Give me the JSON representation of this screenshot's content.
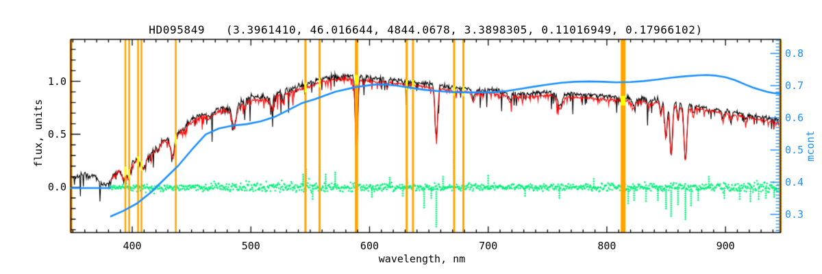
{
  "title": "HD095849   (3.3961410, 46.016644, 4844.0678, 3.3898305, 0.11016949, 0.17966102)",
  "colors": {
    "background": "#ffffff",
    "frame": "#000000",
    "observed": "#000000",
    "fitted": "#ff0000",
    "residual": "#00ef77",
    "mcont": "#1e90ff",
    "marker_lines": "#ffa500",
    "marker_overlap": "#ffff00",
    "text": "#000000"
  },
  "axes": {
    "x": {
      "label": "wavelength, nm",
      "range": [
        348.3,
        946.4
      ],
      "major_ticks": [
        400,
        500,
        600,
        700,
        800,
        900
      ],
      "tick_labels": [
        "400",
        "500",
        "600",
        "700",
        "800",
        "900"
      ],
      "minor_step": 10
    },
    "y_left": {
      "label": "flux, units",
      "range": [
        -0.426,
        1.394
      ],
      "major_ticks": [
        0.0,
        0.5,
        1.0
      ],
      "tick_labels": [
        "0.0",
        "0.5",
        "1.0"
      ],
      "minor_step": 0.1
    },
    "y_right": {
      "label": "mcont",
      "range": [
        0.2436,
        0.8436
      ],
      "major_ticks": [
        0.3,
        0.4,
        0.5,
        0.6,
        0.7,
        0.8
      ],
      "tick_labels": [
        "0.3",
        "0.4",
        "0.5",
        "0.6",
        "0.7",
        "0.8"
      ],
      "minor_step": 0.01
    }
  },
  "chart_data": {
    "type": "line",
    "title": "HD095849   (3.3961410, 46.016644, 4844.0678, 3.3898305, 0.11016949, 0.17966102)",
    "xlabel": "wavelength, nm",
    "ylabel_left": "flux, units",
    "ylabel_right": "mcont",
    "x_range": [
      348.3,
      946.4
    ],
    "y_left_range": [
      -0.426,
      1.394
    ],
    "y_right_range": [
      0.2436,
      0.8436
    ],
    "grid": false,
    "legend": null,
    "series": [
      {
        "name": "observed spectrum",
        "color": "#000000",
        "axis": "left",
        "style": "noisy-line"
      },
      {
        "name": "fitted spectrum",
        "color": "#ff0000",
        "axis": "left",
        "style": "noisy-line",
        "start_x": 381.5,
        "scale": 0.972,
        "offset": -0.005
      },
      {
        "name": "residual",
        "color": "#00ef77",
        "axis": "left",
        "style": "plus-markers",
        "start_x": 381.5,
        "mean": 0.0
      },
      {
        "name": "mcont",
        "color": "#1e90ff",
        "axis": "right",
        "style": "smooth-line"
      }
    ],
    "observed_continuum": [
      [
        348,
        0.1
      ],
      [
        352,
        0.085
      ],
      [
        356,
        0.11
      ],
      [
        360,
        0.14
      ],
      [
        364,
        0.1
      ],
      [
        368,
        0.11
      ],
      [
        371,
        0.07
      ],
      [
        374,
        0.04
      ],
      [
        377,
        0.02
      ],
      [
        380,
        0.05
      ],
      [
        383,
        0.1
      ],
      [
        386,
        0.13
      ],
      [
        389,
        0.16
      ],
      [
        392,
        0.11
      ],
      [
        394.5,
        0.17
      ],
      [
        397,
        0.12
      ],
      [
        399,
        0.2
      ],
      [
        402,
        0.28
      ],
      [
        405,
        0.26
      ],
      [
        408,
        0.21
      ],
      [
        411,
        0.28
      ],
      [
        414,
        0.31
      ],
      [
        417,
        0.33
      ],
      [
        421,
        0.38
      ],
      [
        425,
        0.44
      ],
      [
        428,
        0.45
      ],
      [
        431,
        0.44
      ],
      [
        434,
        0.4
      ],
      [
        437,
        0.48
      ],
      [
        440,
        0.53
      ],
      [
        444,
        0.58
      ],
      [
        448,
        0.62
      ],
      [
        452,
        0.65
      ],
      [
        456,
        0.68
      ],
      [
        460,
        0.69
      ],
      [
        464,
        0.67
      ],
      [
        468,
        0.7
      ],
      [
        472,
        0.73
      ],
      [
        476,
        0.76
      ],
      [
        480,
        0.74
      ],
      [
        484,
        0.72
      ],
      [
        488,
        0.76
      ],
      [
        492,
        0.81
      ],
      [
        496,
        0.83
      ],
      [
        500,
        0.85
      ],
      [
        504,
        0.86
      ],
      [
        508,
        0.85
      ],
      [
        512,
        0.86
      ],
      [
        516,
        0.84
      ],
      [
        520,
        0.88
      ],
      [
        524,
        0.9
      ],
      [
        528,
        0.92
      ],
      [
        532,
        0.92
      ],
      [
        536,
        0.94
      ],
      [
        540,
        0.95
      ],
      [
        545,
        0.97
      ],
      [
        550,
        0.99
      ],
      [
        555,
        1.01
      ],
      [
        560,
        1.03
      ],
      [
        565,
        1.04
      ],
      [
        570,
        1.05
      ],
      [
        575,
        1.05
      ],
      [
        580,
        1.06
      ],
      [
        585,
        1.05
      ],
      [
        590,
        1.05
      ],
      [
        595,
        1.04
      ],
      [
        600,
        1.04
      ],
      [
        606,
        1.03
      ],
      [
        612,
        1.03
      ],
      [
        618,
        1.02
      ],
      [
        624,
        1.01
      ],
      [
        630,
        1.0
      ],
      [
        636,
        1.0
      ],
      [
        642,
        0.99
      ],
      [
        648,
        0.98
      ],
      [
        654,
        0.97
      ],
      [
        660,
        0.96
      ],
      [
        666,
        0.95
      ],
      [
        672,
        0.94
      ],
      [
        678,
        0.94
      ],
      [
        684,
        0.93
      ],
      [
        690,
        0.93
      ],
      [
        696,
        0.92
      ],
      [
        702,
        0.92
      ],
      [
        708,
        0.91
      ],
      [
        714,
        0.9
      ],
      [
        720,
        0.89
      ],
      [
        726,
        0.885
      ],
      [
        732,
        0.885
      ],
      [
        738,
        0.89
      ],
      [
        744,
        0.895
      ],
      [
        750,
        0.9
      ],
      [
        756,
        0.885
      ],
      [
        762,
        0.875
      ],
      [
        768,
        0.88
      ],
      [
        774,
        0.88
      ],
      [
        780,
        0.875
      ],
      [
        786,
        0.87
      ],
      [
        792,
        0.865
      ],
      [
        798,
        0.86
      ],
      [
        804,
        0.855
      ],
      [
        810,
        0.85
      ],
      [
        816,
        0.845
      ],
      [
        822,
        0.845
      ],
      [
        828,
        0.84
      ],
      [
        834,
        0.835
      ],
      [
        840,
        0.83
      ],
      [
        846,
        0.82
      ],
      [
        852,
        0.81
      ],
      [
        858,
        0.8
      ],
      [
        864,
        0.79
      ],
      [
        870,
        0.78
      ],
      [
        876,
        0.77
      ],
      [
        882,
        0.755
      ],
      [
        888,
        0.745
      ],
      [
        894,
        0.735
      ],
      [
        900,
        0.725
      ],
      [
        906,
        0.71
      ],
      [
        912,
        0.7
      ],
      [
        918,
        0.69
      ],
      [
        924,
        0.675
      ],
      [
        930,
        0.66
      ],
      [
        936,
        0.65
      ],
      [
        941,
        0.64
      ],
      [
        946,
        0.63
      ]
    ],
    "absorption_lines": [
      [
        393.4,
        0.45,
        1.2
      ],
      [
        396.9,
        0.4,
        1.2
      ],
      [
        402.2,
        0.12,
        0.8
      ],
      [
        410.2,
        0.28,
        1.4
      ],
      [
        422,
        0.1,
        0.8
      ],
      [
        434.0,
        0.28,
        1.4
      ],
      [
        444,
        0.08,
        0.7
      ],
      [
        486.1,
        0.22,
        1.4
      ],
      [
        495,
        0.08,
        0.7
      ],
      [
        517.5,
        0.13,
        1.1
      ],
      [
        527,
        0.1,
        0.8
      ],
      [
        589.0,
        0.72,
        1.0
      ],
      [
        615,
        0.05,
        0.8
      ],
      [
        656.3,
        0.5,
        1.1
      ],
      [
        687.5,
        0.09,
        1.4
      ],
      [
        718.5,
        0.07,
        1.4
      ],
      [
        760.5,
        0.12,
        1.8
      ],
      [
        822.5,
        0.08,
        1.6
      ],
      [
        835,
        0.06,
        1.0
      ],
      [
        845.5,
        0.14,
        0.8
      ],
      [
        849.8,
        0.42,
        1.0
      ],
      [
        854.2,
        0.62,
        1.1
      ],
      [
        860,
        0.18,
        0.8
      ],
      [
        866.2,
        0.66,
        1.2
      ],
      [
        873,
        0.12,
        0.8
      ],
      [
        898,
        0.1,
        1.0
      ],
      [
        905,
        0.08,
        0.8
      ],
      [
        917,
        0.08,
        0.8
      ]
    ],
    "noise_amplitude_segments": [
      [
        348,
        1.0
      ],
      [
        420,
        1.1
      ],
      [
        500,
        1.4
      ],
      [
        600,
        1.2
      ],
      [
        700,
        0.9
      ],
      [
        800,
        1.0
      ],
      [
        870,
        1.1
      ],
      [
        946,
        1.2
      ]
    ],
    "residual_sigma_segments": [
      [
        381,
        0.022
      ],
      [
        400,
        0.028
      ],
      [
        430,
        0.03
      ],
      [
        470,
        0.032
      ],
      [
        500,
        0.04
      ],
      [
        540,
        0.047
      ],
      [
        560,
        0.04
      ],
      [
        600,
        0.038
      ],
      [
        640,
        0.034
      ],
      [
        680,
        0.028
      ],
      [
        720,
        0.026
      ],
      [
        770,
        0.028
      ],
      [
        810,
        0.032
      ],
      [
        850,
        0.035
      ],
      [
        890,
        0.04
      ],
      [
        920,
        0.046
      ],
      [
        946,
        0.048
      ]
    ],
    "residual_spikes": [
      [
        544,
        0.12
      ],
      [
        546.5,
        0.17
      ],
      [
        552,
        -0.11
      ],
      [
        557.9,
        0.21
      ],
      [
        563,
        0.12
      ],
      [
        571,
        0.14
      ],
      [
        589,
        -0.13
      ],
      [
        602,
        -0.09
      ],
      [
        617,
        0.09
      ],
      [
        628,
        -0.08
      ],
      [
        646,
        -0.19
      ],
      [
        652,
        -0.1
      ],
      [
        656.3,
        -0.37
      ],
      [
        662,
        0.1
      ],
      [
        671.3,
        0.34
      ],
      [
        679,
        0.1
      ],
      [
        700,
        0.11
      ],
      [
        731,
        -0.08
      ],
      [
        760,
        -0.1
      ],
      [
        789,
        0.08
      ],
      [
        813.7,
        -0.19
      ],
      [
        818,
        -0.15
      ],
      [
        823,
        -0.12
      ],
      [
        833,
        -0.13
      ],
      [
        843,
        -0.12
      ],
      [
        849.8,
        -0.2
      ],
      [
        854.2,
        -0.27
      ],
      [
        860,
        -0.16
      ],
      [
        866.2,
        -0.3
      ],
      [
        871,
        -0.17
      ],
      [
        877,
        -0.12
      ],
      [
        886,
        0.1
      ],
      [
        899,
        -0.1
      ],
      [
        912,
        -0.11
      ],
      [
        921,
        -0.13
      ],
      [
        928,
        -0.11
      ],
      [
        934,
        -0.1
      ],
      [
        941,
        -0.09
      ]
    ],
    "mcont_flat_segment": [
      [
        348.3,
        0.382
      ],
      [
        381.3,
        0.382
      ]
    ],
    "mcont_curve": [
      [
        382,
        0.294
      ],
      [
        392.5,
        0.311
      ],
      [
        404,
        0.334
      ],
      [
        415.6,
        0.368
      ],
      [
        427,
        0.409
      ],
      [
        438.7,
        0.451
      ],
      [
        450,
        0.5
      ],
      [
        461.8,
        0.548
      ],
      [
        473,
        0.567
      ],
      [
        485,
        0.576
      ],
      [
        496,
        0.58
      ],
      [
        508,
        0.589
      ],
      [
        519.5,
        0.602
      ],
      [
        531,
        0.623
      ],
      [
        542.6,
        0.645
      ],
      [
        554,
        0.658
      ],
      [
        571,
        0.681
      ],
      [
        589,
        0.696
      ],
      [
        606,
        0.704
      ],
      [
        615,
        0.703
      ],
      [
        623,
        0.7
      ],
      [
        632,
        0.695
      ],
      [
        646,
        0.687
      ],
      [
        658,
        0.683
      ],
      [
        670,
        0.68
      ],
      [
        683,
        0.679
      ],
      [
        695,
        0.679
      ],
      [
        704,
        0.679
      ],
      [
        715,
        0.683
      ],
      [
        727,
        0.69
      ],
      [
        739,
        0.697
      ],
      [
        750,
        0.703
      ],
      [
        762,
        0.709
      ],
      [
        773,
        0.712
      ],
      [
        785,
        0.713
      ],
      [
        797,
        0.712
      ],
      [
        808,
        0.71
      ],
      [
        820,
        0.711
      ],
      [
        831,
        0.714
      ],
      [
        843,
        0.719
      ],
      [
        855,
        0.725
      ],
      [
        866,
        0.729
      ],
      [
        877,
        0.732
      ],
      [
        884,
        0.733
      ],
      [
        892,
        0.731
      ],
      [
        900,
        0.726
      ],
      [
        908,
        0.717
      ],
      [
        917,
        0.703
      ],
      [
        923,
        0.694
      ],
      [
        929,
        0.687
      ],
      [
        935,
        0.681
      ],
      [
        940,
        0.677
      ],
      [
        945.5,
        0.675
      ]
    ],
    "vertical_marker_lines": [
      [
        348.4,
        4
      ],
      [
        394.2,
        2.5
      ],
      [
        397.4,
        2.5
      ],
      [
        404.9,
        2.5
      ],
      [
        407.8,
        2.5
      ],
      [
        436.7,
        2.5
      ],
      [
        546.0,
        3
      ],
      [
        557.9,
        3
      ],
      [
        589.0,
        4.5
      ],
      [
        631.3,
        3
      ],
      [
        636.6,
        3
      ],
      [
        671.3,
        3
      ],
      [
        679.1,
        3
      ],
      [
        813.7,
        7
      ],
      [
        946.2,
        4
      ]
    ]
  }
}
